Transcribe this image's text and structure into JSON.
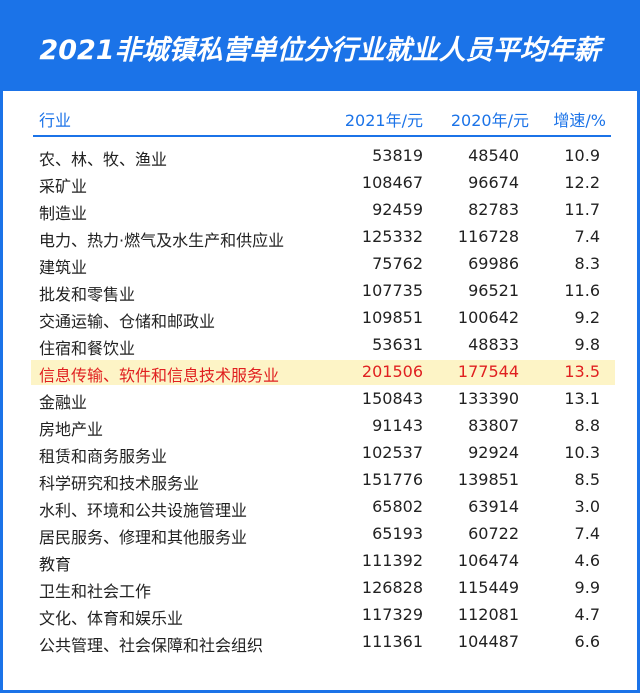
{
  "title": "2021非城镇私营单位分行业就业人员平均年薪",
  "colors": {
    "brand": "#1b73e8",
    "highlight_text": "#e02020",
    "highlight_bg": "#fdf4c6"
  },
  "chart_data": {
    "type": "table",
    "title": "2021非城镇私营单位分行业就业人员平均年薪",
    "columns": [
      "行业",
      "2021年/元",
      "2020年/元",
      "增速/%"
    ],
    "highlight_row": 8,
    "rows": [
      [
        "农、林、牧、渔业",
        53819,
        48540,
        "10.9"
      ],
      [
        "采矿业",
        108467,
        96674,
        "12.2"
      ],
      [
        "制造业",
        92459,
        82783,
        "11.7"
      ],
      [
        "电力、热力·燃气及水生产和供应业",
        125332,
        116728,
        "7.4"
      ],
      [
        "建筑业",
        75762,
        69986,
        "8.3"
      ],
      [
        "批发和零售业",
        107735,
        96521,
        "11.6"
      ],
      [
        "交通运输、仓储和邮政业",
        109851,
        100642,
        "9.2"
      ],
      [
        "住宿和餐饮业",
        53631,
        48833,
        "9.8"
      ],
      [
        "信息传输、软件和信息技术服务业",
        201506,
        177544,
        "13.5"
      ],
      [
        "金融业",
        150843,
        133390,
        "13.1"
      ],
      [
        "房地产业",
        91143,
        83807,
        "8.8"
      ],
      [
        "租赁和商务服务业",
        102537,
        92924,
        "10.3"
      ],
      [
        "科学研究和技术服务业",
        151776,
        139851,
        "8.5"
      ],
      [
        "水利、环境和公共设施管理业",
        65802,
        63914,
        "3.0"
      ],
      [
        "居民服务、修理和其他服务业",
        65193,
        60722,
        "7.4"
      ],
      [
        "教育",
        111392,
        106474,
        "4.6"
      ],
      [
        "卫生和社会工作",
        126828,
        115449,
        "9.9"
      ],
      [
        "文化、体育和娱乐业",
        117329,
        112081,
        "4.7"
      ],
      [
        "公共管理、社会保障和社会组织",
        111361,
        104487,
        "6.6"
      ]
    ]
  }
}
